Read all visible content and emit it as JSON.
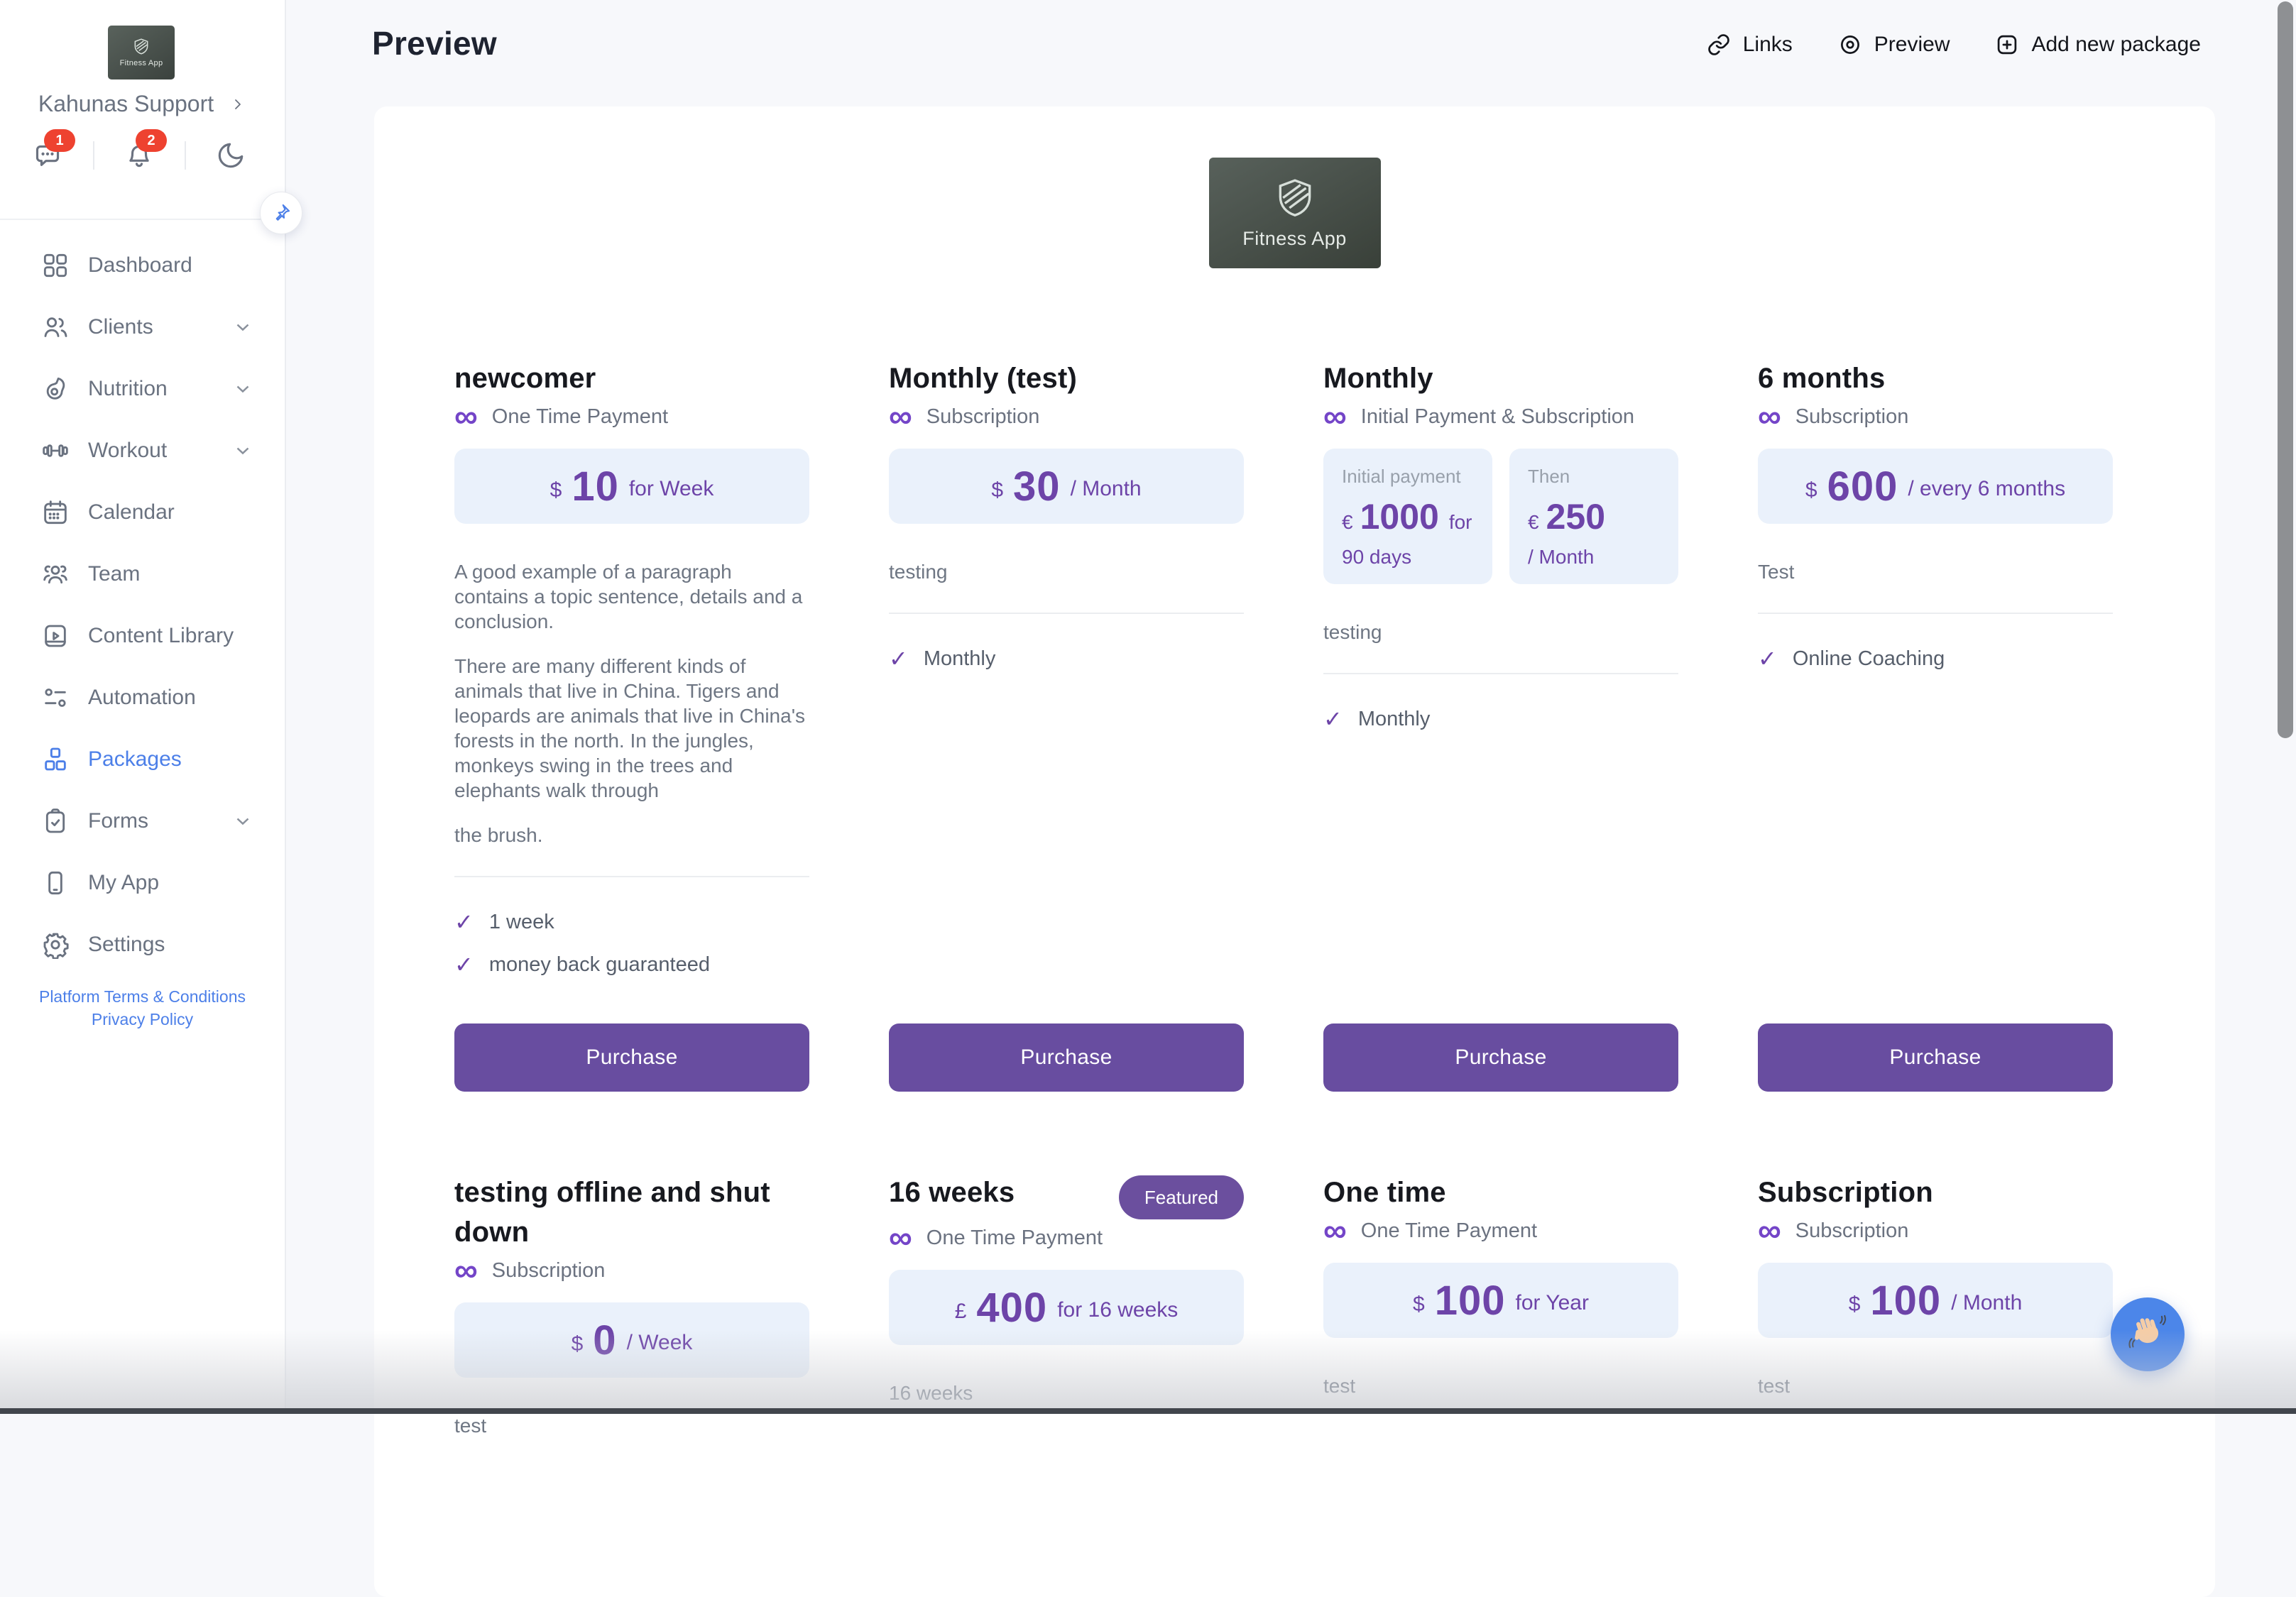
{
  "header": {
    "title": "Preview",
    "actions": {
      "links": "Links",
      "preview": "Preview",
      "add": "Add new package"
    }
  },
  "sidebar": {
    "logo_text": "Fitness App",
    "account_name": "Kahunas Support",
    "chat_badge": "1",
    "bell_badge": "2",
    "nav": [
      {
        "label": "Dashboard",
        "icon": "dashboard",
        "active": false,
        "chevron": false
      },
      {
        "label": "Clients",
        "icon": "clients",
        "active": false,
        "chevron": true
      },
      {
        "label": "Nutrition",
        "icon": "nutrition",
        "active": false,
        "chevron": true
      },
      {
        "label": "Workout",
        "icon": "workout",
        "active": false,
        "chevron": true
      },
      {
        "label": "Calendar",
        "icon": "calendar",
        "active": false,
        "chevron": false
      },
      {
        "label": "Team",
        "icon": "team",
        "active": false,
        "chevron": false
      },
      {
        "label": "Content Library",
        "icon": "content-library",
        "active": false,
        "chevron": false
      },
      {
        "label": "Automation",
        "icon": "automation",
        "active": false,
        "chevron": false
      },
      {
        "label": "Packages",
        "icon": "packages",
        "active": true,
        "chevron": false
      },
      {
        "label": "Forms",
        "icon": "forms",
        "active": false,
        "chevron": true
      },
      {
        "label": "My App",
        "icon": "my-app",
        "active": false,
        "chevron": false
      },
      {
        "label": "Settings",
        "icon": "settings",
        "active": false,
        "chevron": false
      }
    ],
    "terms_link": "Platform Terms & Conditions",
    "privacy_link": "Privacy Policy"
  },
  "brand": {
    "label": "Fitness App"
  },
  "packages": [
    {
      "name": "newcomer",
      "type": "One Time Payment",
      "price": {
        "currency": "$",
        "amount": "10",
        "suffix": "for Week"
      },
      "description": [
        "A good example of a paragraph contains a topic sentence, details and a conclusion.",
        "There are many different kinds of animals that live in China. Tigers and leopards are animals that live in China's forests in the north. In the jungles, monkeys swing in the trees and elephants walk through",
        "the brush."
      ],
      "features": [
        "1 week",
        "money back guaranteed"
      ],
      "cta": "Purchase"
    },
    {
      "name": "Monthly (test)",
      "type": "Subscription",
      "price": {
        "currency": "$",
        "amount": "30",
        "suffix": "/  Month"
      },
      "description": [
        "testing"
      ],
      "features": [
        "Monthly"
      ],
      "cta": "Purchase"
    },
    {
      "name": "Monthly",
      "type": "Initial Payment & Subscription",
      "dual_price": [
        {
          "label": "Initial payment",
          "currency": "€",
          "amount": "1000",
          "suffix": "for",
          "below": "90 days"
        },
        {
          "label": "Then",
          "currency": "€",
          "amount": "250",
          "suffix": "",
          "below": "/  Month"
        }
      ],
      "description": [
        "testing"
      ],
      "features": [
        "Monthly"
      ],
      "cta": "Purchase"
    },
    {
      "name": "6 months",
      "type": "Subscription",
      "price": {
        "currency": "$",
        "amount": "600",
        "suffix": "/  every 6 months"
      },
      "description": [
        "Test"
      ],
      "features": [
        "Online Coaching"
      ],
      "cta": "Purchase"
    },
    {
      "name": "testing offline and shut down",
      "type": "Subscription",
      "price": {
        "currency": "$",
        "amount": "0",
        "suffix": "/  Week"
      },
      "description": [
        "test"
      ]
    },
    {
      "name": "16 weeks",
      "badge": "Featured",
      "type": "One Time Payment",
      "price": {
        "currency": "£",
        "amount": "400",
        "suffix": "for 16 weeks"
      },
      "description": [
        "16 weeks"
      ]
    },
    {
      "name": "One time",
      "type": "One Time Payment",
      "price": {
        "currency": "$",
        "amount": "100",
        "suffix": "for Year"
      },
      "description": [
        "test"
      ]
    },
    {
      "name": "Subscription",
      "type": "Subscription",
      "price": {
        "currency": "$",
        "amount": "100",
        "suffix": "/  Month"
      },
      "description": [
        "test"
      ]
    }
  ],
  "colors": {
    "accent_purple": "#6D44A8",
    "button_purple": "#684DA0",
    "price_box_bg": "#EAF1FB",
    "active_blue": "#4C7FE8",
    "badge_red": "#EE4230",
    "fab_blue": "#4C86E9"
  }
}
